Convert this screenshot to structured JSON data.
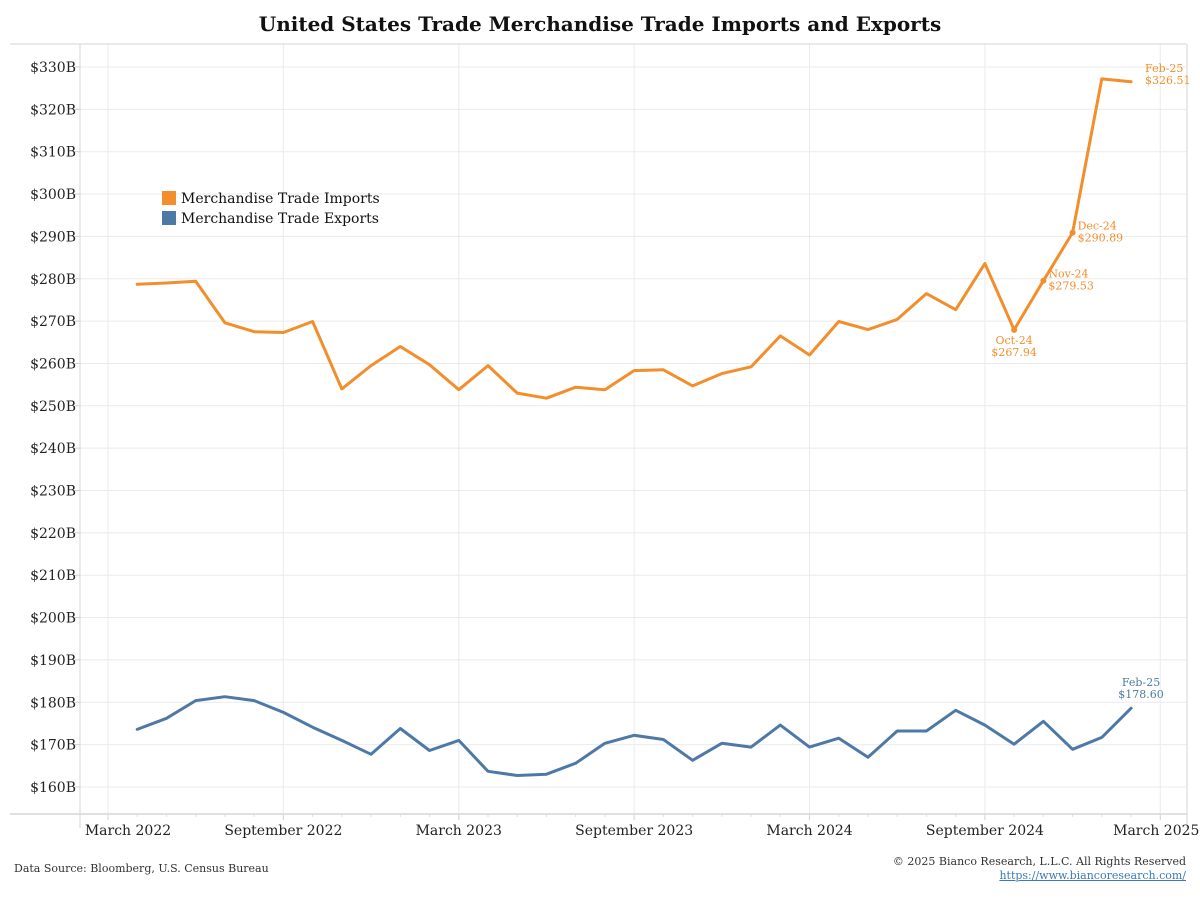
{
  "chart_data": {
    "type": "line",
    "title": "United States Trade Merchandise Trade Imports and Exports",
    "xlabel": "",
    "ylabel": "",
    "x": [
      "Apr-22",
      "May-22",
      "Jun-22",
      "Jul-22",
      "Aug-22",
      "Sep-22",
      "Oct-22",
      "Nov-22",
      "Dec-22",
      "Jan-23",
      "Feb-23",
      "Mar-23",
      "Apr-23",
      "May-23",
      "Jun-23",
      "Jul-23",
      "Aug-23",
      "Sep-23",
      "Oct-23",
      "Nov-23",
      "Dec-23",
      "Jan-24",
      "Feb-24",
      "Mar-24",
      "Apr-24",
      "May-24",
      "Jun-24",
      "Jul-24",
      "Aug-24",
      "Sep-24",
      "Oct-24",
      "Nov-24",
      "Dec-24",
      "Jan-25",
      "Feb-25"
    ],
    "x_start_month_index": 1,
    "ylim": [
      155,
      333
    ],
    "yticks": [
      160,
      170,
      180,
      190,
      200,
      210,
      220,
      230,
      240,
      250,
      260,
      270,
      280,
      290,
      300,
      310,
      320,
      330
    ],
    "ytick_labels": [
      "$160B",
      "$170B",
      "$180B",
      "$190B",
      "$200B",
      "$210B",
      "$220B",
      "$230B",
      "$240B",
      "$250B",
      "$260B",
      "$270B",
      "$280B",
      "$290B",
      "$300B",
      "$310B",
      "$320B",
      "$330B"
    ],
    "xticks": [
      {
        "label": "March 2022",
        "month_index": 0
      },
      {
        "label": "September 2022",
        "month_index": 6
      },
      {
        "label": "March 2023",
        "month_index": 12
      },
      {
        "label": "September 2023",
        "month_index": 18
      },
      {
        "label": "March 2024",
        "month_index": 24
      },
      {
        "label": "September 2024",
        "month_index": 30
      },
      {
        "label": "March 2025",
        "month_index": 36
      }
    ],
    "grid": true,
    "legend_position": "top-left",
    "series": [
      {
        "name": "Merchandise Trade Imports",
        "color": "#f28e2b",
        "values": [
          278.7,
          279.0,
          279.4,
          269.6,
          267.5,
          267.3,
          269.9,
          254.0,
          259.5,
          264.0,
          259.7,
          253.8,
          259.5,
          253.0,
          251.8,
          254.4,
          253.8,
          258.3,
          258.5,
          254.7,
          257.6,
          259.2,
          266.5,
          262.0,
          269.9,
          268.0,
          270.4,
          276.5,
          272.7,
          283.6,
          267.94,
          279.53,
          290.89,
          327.2,
          326.51
        ]
      },
      {
        "name": "Merchandise Trade Exports",
        "color": "#4e79a7",
        "values": [
          173.6,
          176.2,
          180.4,
          181.3,
          180.4,
          177.6,
          174.1,
          171.0,
          167.7,
          173.8,
          168.6,
          171.0,
          163.7,
          162.7,
          163.0,
          165.6,
          170.3,
          172.2,
          171.2,
          166.3,
          170.3,
          169.4,
          174.6,
          169.4,
          171.5,
          167.0,
          173.2,
          173.2,
          178.1,
          174.6,
          170.1,
          175.5,
          168.9,
          171.7,
          178.6
        ]
      }
    ],
    "annotations": [
      {
        "series": 0,
        "index": 30,
        "label": "Oct-24",
        "value_label": "$267.94",
        "marker": true,
        "placement": "below"
      },
      {
        "series": 0,
        "index": 31,
        "label": "Nov-24",
        "value_label": "$279.53",
        "marker": true,
        "placement": "right"
      },
      {
        "series": 0,
        "index": 32,
        "label": "Dec-24",
        "value_label": "$290.89",
        "marker": true,
        "placement": "right"
      },
      {
        "series": 0,
        "index": 34,
        "label": "Feb-25",
        "value_label": "$326.51",
        "marker": false,
        "placement": "right"
      },
      {
        "series": 1,
        "index": 34,
        "label": "Feb-25",
        "value_label": "$178.60",
        "marker": false,
        "placement": "above"
      }
    ]
  },
  "footer": {
    "source": "Data Source: Bloomberg, U.S. Census Bureau",
    "copyright": "© 2025 Bianco Research, L.L.C. All Rights Reserved",
    "url": "https://www.biancoresearch.com/"
  }
}
